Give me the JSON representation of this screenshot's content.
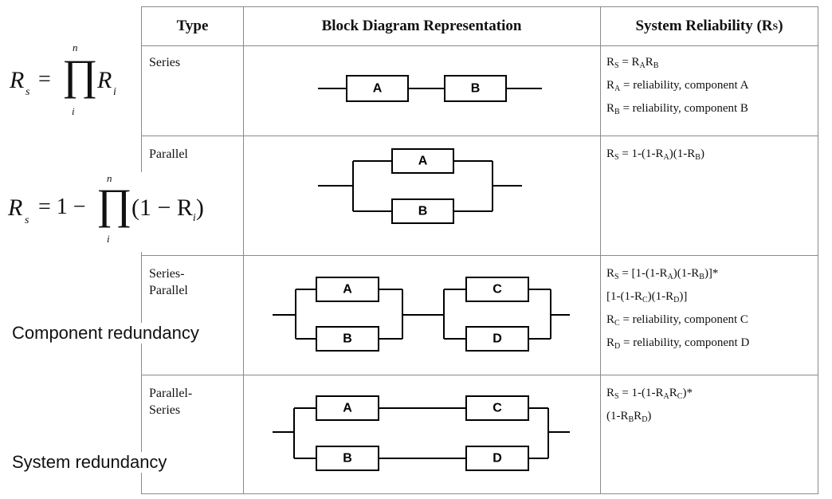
{
  "header": {
    "type": "Type",
    "block": "Block Diagram Representation",
    "reliability_prefix": "System Reliability (R",
    "reliability_sub": "S",
    "reliability_suffix": ")"
  },
  "rows": [
    {
      "type": "Series",
      "blocks": [
        "A",
        "B"
      ],
      "reliability": [
        [
          {
            "t": "R"
          },
          {
            "s": "S"
          },
          {
            "t": " = R"
          },
          {
            "s": "A"
          },
          {
            "t": "R"
          },
          {
            "s": "B"
          }
        ],
        [
          {
            "t": "R"
          },
          {
            "s": "A"
          },
          {
            "t": " = reliability, component A"
          }
        ],
        [
          {
            "t": "R"
          },
          {
            "s": "B"
          },
          {
            "t": " = reliability, component B"
          }
        ]
      ]
    },
    {
      "type": "Parallel",
      "blocks": [
        "A",
        "B"
      ],
      "reliability": [
        [
          {
            "t": "R"
          },
          {
            "s": "S"
          },
          {
            "t": " = 1-(1-R"
          },
          {
            "s": "A"
          },
          {
            "t": ")(1-R"
          },
          {
            "s": "B"
          },
          {
            "t": ")"
          }
        ]
      ]
    },
    {
      "type": "Series-\nParallel",
      "blocks": [
        "A",
        "B",
        "C",
        "D"
      ],
      "reliability": [
        [
          {
            "t": "R"
          },
          {
            "s": "S"
          },
          {
            "t": " = [1-(1-R"
          },
          {
            "s": "A"
          },
          {
            "t": ")(1-R"
          },
          {
            "s": "B"
          },
          {
            "t": ")]*"
          }
        ],
        [
          {
            "t": "[1-(1-R"
          },
          {
            "s": "C"
          },
          {
            "t": ")(1-R"
          },
          {
            "s": "D"
          },
          {
            "t": ")]"
          }
        ],
        [
          {
            "t": "R"
          },
          {
            "s": "C"
          },
          {
            "t": " = reliability, component C"
          }
        ],
        [
          {
            "t": "R"
          },
          {
            "s": "D"
          },
          {
            "t": " = reliability, component D"
          }
        ]
      ]
    },
    {
      "type": "Parallel-\nSeries",
      "blocks": [
        "A",
        "C",
        "B",
        "D"
      ],
      "reliability": [
        [
          {
            "t": "R"
          },
          {
            "s": "S"
          },
          {
            "t": " = 1-(1-R"
          },
          {
            "s": "A"
          },
          {
            "t": "R"
          },
          {
            "s": "C"
          },
          {
            "t": ")*"
          }
        ],
        [
          {
            "t": " (1-R"
          },
          {
            "s": "B"
          },
          {
            "t": "R"
          },
          {
            "s": "D"
          },
          {
            "t": ")"
          }
        ]
      ]
    }
  ],
  "formulas": {
    "series": {
      "lhs": "R",
      "lhs_sub": "s",
      "eq": "=",
      "pi": "∏",
      "upper": "n",
      "lower": "i",
      "term": "R",
      "term_sub": "i"
    },
    "parallel": {
      "lhs": "R",
      "lhs_sub": "s",
      "eq": "= 1 −",
      "pi": "∏",
      "upper": "n",
      "lower": "i",
      "term_open": "(1 − R",
      "term_sub": "i",
      "term_close": ")"
    }
  },
  "notes": {
    "component": "Component redundancy",
    "system": "System redundancy"
  }
}
